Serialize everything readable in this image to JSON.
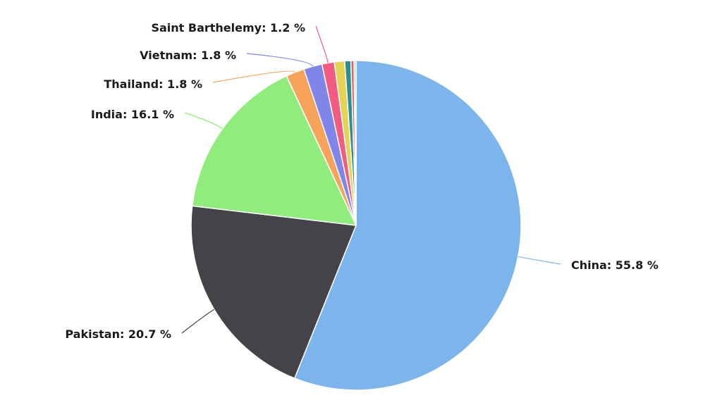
{
  "chart_data": {
    "type": "pie",
    "title": "",
    "slices": [
      {
        "label": "China",
        "value": 55.8,
        "display": "China: 55.8 %",
        "color": "#7cb5ec",
        "show_label": true
      },
      {
        "label": "Pakistan",
        "value": 20.7,
        "display": "Pakistan: 20.7 %",
        "color": "#434348",
        "show_label": true
      },
      {
        "label": "India",
        "value": 16.1,
        "display": "India: 16.1 %",
        "color": "#90ed7d",
        "show_label": true
      },
      {
        "label": "Thailand",
        "value": 1.8,
        "display": "Thailand: 1.8 %",
        "color": "#f7a35c",
        "show_label": true
      },
      {
        "label": "Vietnam",
        "value": 1.8,
        "display": "Vietnam: 1.8 %",
        "color": "#8085e9",
        "show_label": true
      },
      {
        "label": "Saint Barthelemy",
        "value": 1.2,
        "display": "Saint Barthelemy: 1.2 %",
        "color": "#f15c80",
        "show_label": true
      },
      {
        "label": "",
        "value": 1.0,
        "display": "",
        "color": "#e4d354",
        "show_label": false
      },
      {
        "label": "",
        "value": 0.6,
        "display": "",
        "color": "#2b908f",
        "show_label": false
      },
      {
        "label": "",
        "value": 0.3,
        "display": "",
        "color": "#f45b5b",
        "show_label": false
      },
      {
        "label": "",
        "value": 0.2,
        "display": "",
        "color": "#91e8e1",
        "show_label": false
      }
    ]
  }
}
